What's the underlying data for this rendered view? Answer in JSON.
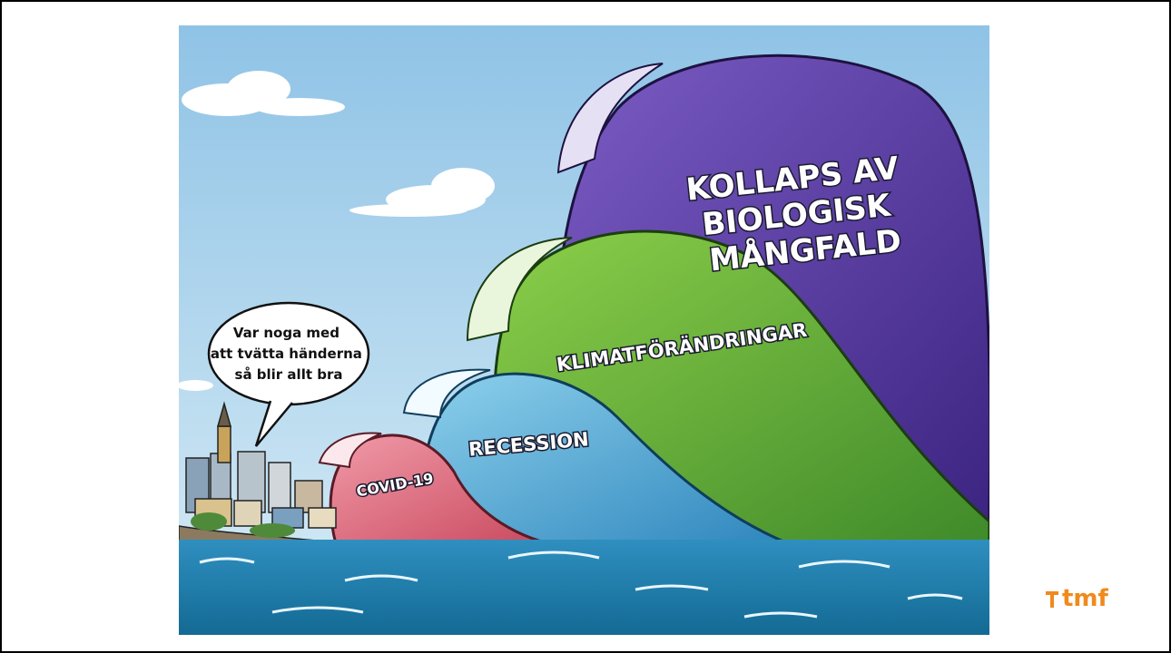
{
  "illustration": {
    "speech_bubble": [
      "Var noga med",
      "att tvätta händerna",
      "så blir allt bra"
    ],
    "waves": [
      {
        "label": [
          "COVID-19"
        ]
      },
      {
        "label": [
          "RECESSION"
        ]
      },
      {
        "label": [
          "KLIMATFÖRÄNDRINGAR"
        ]
      },
      {
        "label": [
          "KOLLAPS AV",
          "BIOLOGISK",
          "MÅNGFALD"
        ]
      }
    ]
  },
  "logo": "tmf"
}
